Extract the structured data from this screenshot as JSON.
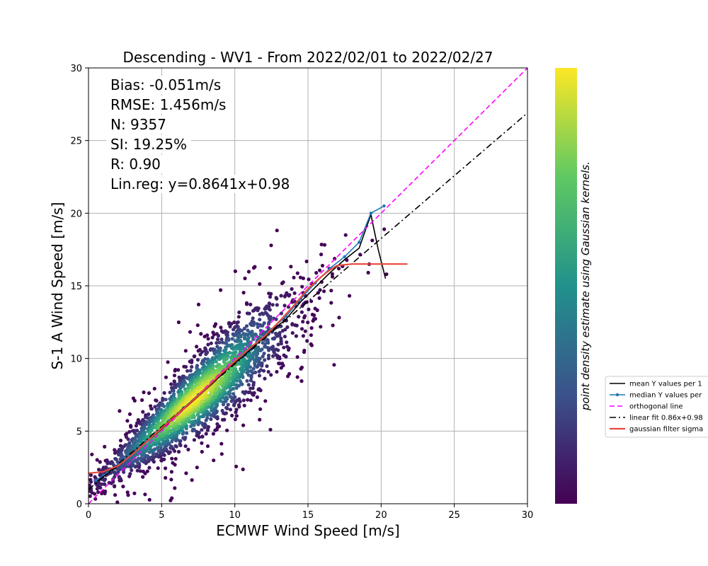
{
  "chart_data": {
    "type": "scatter",
    "title": "Descending - WV1 - From 2022/02/01 to 2022/02/27",
    "xlabel": "ECMWF Wind Speed [m/s]",
    "ylabel": "S-1 A Wind Speed [m/s]",
    "xlim": [
      0,
      30
    ],
    "ylim": [
      0,
      30
    ],
    "x_ticks": [
      "0",
      "5",
      "10",
      "15",
      "20",
      "25",
      "30"
    ],
    "y_ticks": [
      "0",
      "5",
      "10",
      "15",
      "20",
      "25",
      "30"
    ],
    "grid": true,
    "stats": [
      "Bias: -0.051m/s",
      "RMSE: 1.456m/s",
      "N: 9357",
      "SI: 19.25%",
      "R: 0.90",
      "Lin.reg: y=0.8641x+0.98"
    ],
    "colorbar_label": "point density estimate using Gaussian kernels.",
    "colormap": [
      "#440154",
      "#3b528b",
      "#21918c",
      "#5ec962",
      "#fde725"
    ],
    "legend_position": "right, outside plot",
    "series": [
      {
        "name": "mean Y values per 1",
        "style": "line",
        "color": "#000000",
        "x": [
          0.5,
          1.5,
          2.5,
          3.5,
          4.5,
          5.5,
          6.5,
          7.5,
          8.5,
          9.5,
          10.5,
          11.5,
          12.5,
          13.5,
          14.5,
          15.5,
          16.5,
          17.5,
          18.5,
          19.3,
          19.8,
          20.3
        ],
        "y": [
          1.5,
          2.2,
          3.0,
          3.9,
          4.7,
          5.6,
          6.5,
          7.4,
          8.3,
          9.3,
          10.1,
          11.0,
          11.9,
          12.7,
          13.9,
          14.9,
          15.9,
          16.8,
          17.6,
          19.9,
          17.5,
          15.5
        ]
      },
      {
        "name": "median Y values per",
        "style": "line-marker",
        "color": "#1f77b4",
        "x": [
          0.5,
          1.5,
          2.5,
          3.5,
          4.5,
          5.5,
          6.5,
          7.5,
          8.5,
          9.5,
          10.5,
          11.5,
          12.5,
          13.5,
          14.5,
          15.5,
          16.5,
          17.5,
          18.5,
          19.3,
          20.2
        ],
        "y": [
          1.6,
          2.3,
          3.1,
          4.0,
          4.8,
          5.7,
          6.6,
          7.5,
          8.4,
          9.4,
          10.2,
          11.1,
          12.0,
          12.9,
          14.1,
          15.2,
          16.2,
          17.0,
          18.0,
          20.0,
          20.5
        ]
      },
      {
        "name": "orthogonal line",
        "style": "dashed",
        "color": "#ff00ff",
        "x": [
          0,
          30
        ],
        "y": [
          0,
          30
        ]
      },
      {
        "name": "linear fit 0.86x+0.98",
        "style": "dashdot",
        "color": "#000000",
        "x": [
          0,
          30
        ],
        "y": [
          0.98,
          26.9
        ]
      },
      {
        "name": "gaussian filter sigma",
        "style": "line",
        "color": "#e8483a",
        "x": [
          0,
          1,
          2,
          3,
          4,
          5,
          6,
          7,
          8,
          9,
          10,
          11,
          12,
          13,
          14,
          15,
          16,
          16.5,
          17,
          18,
          19,
          20,
          21,
          21.8
        ],
        "y": [
          2.1,
          2.2,
          2.6,
          3.4,
          4.3,
          5.2,
          6.1,
          7.0,
          7.9,
          8.9,
          9.8,
          10.7,
          11.5,
          12.5,
          13.6,
          14.8,
          15.7,
          16.1,
          16.4,
          16.5,
          16.5,
          16.5,
          16.5,
          16.5
        ]
      }
    ]
  }
}
